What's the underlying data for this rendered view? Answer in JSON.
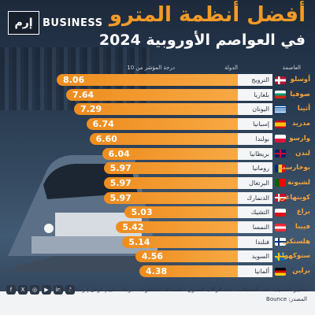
{
  "header": {
    "brand_logo": "إرم",
    "brand_text": "BUSINESS",
    "title_line1": "أفضل أنظمة المترو",
    "title_line2": "في العواصم الأوروبية 2024"
  },
  "columns": {
    "capital": "العاصمة",
    "country": "الدولة",
    "score": "درجة المؤشر من 10"
  },
  "colors": {
    "accent": "#f39a27",
    "bar": "#f7a944"
  },
  "chart_data": {
    "type": "bar",
    "orientation": "horizontal",
    "xlim": [
      0,
      10
    ],
    "rows": [
      {
        "capital": "أوسلو",
        "country": "النرويج",
        "value": 8.06,
        "label": "8.06",
        "flag": "norway"
      },
      {
        "capital": "صوفيا",
        "country": "بلغاريا",
        "value": 7.64,
        "label": "7.64",
        "flag": "bulgaria"
      },
      {
        "capital": "أثينا",
        "country": "اليونان",
        "value": 7.29,
        "label": "7.29",
        "flag": "greece"
      },
      {
        "capital": "مدريد",
        "country": "إسبانيا",
        "value": 6.74,
        "label": "6.74",
        "flag": "spain"
      },
      {
        "capital": "وارسو",
        "country": "بولندا",
        "value": 6.6,
        "label": "6.60",
        "flag": "poland"
      },
      {
        "capital": "لندن",
        "country": "بريطانيا",
        "value": 6.04,
        "label": "6.04",
        "flag": "uk"
      },
      {
        "capital": "بوخارست",
        "country": "رومانيا",
        "value": 5.97,
        "label": "5.97",
        "flag": "romania"
      },
      {
        "capital": "لشبونة",
        "country": "البرتغال",
        "value": 5.97,
        "label": "5.97",
        "flag": "portugal"
      },
      {
        "capital": "كوبنهاغن",
        "country": "الدنمارك",
        "value": 5.97,
        "label": "5.97",
        "flag": "denmark"
      },
      {
        "capital": "براغ",
        "country": "التشيك",
        "value": 5.03,
        "label": "5.03",
        "flag": "czech"
      },
      {
        "capital": "فيينا",
        "country": "النمسا",
        "value": 5.42,
        "label": "5.42",
        "flag": "austria"
      },
      {
        "capital": "هلسنكي",
        "country": "فنلندا",
        "value": 5.14,
        "label": "5.14",
        "flag": "finland"
      },
      {
        "capital": "ستوكهولم",
        "country": "السويد",
        "value": 4.56,
        "label": "4.56",
        "flag": "sweden"
      },
      {
        "capital": "برلين",
        "country": "ألمانيا",
        "value": 4.38,
        "label": "4.38",
        "flag": "germany"
      }
    ]
  },
  "footer": {
    "criteria": "معايير التصنيف: عدد المحطات - عدد الركاب السنوي - المسافة المقطوعة - درجات تقييم غوغل | رضا العملاء",
    "source": "المصدر: Bounce"
  },
  "social_icons": [
    "facebook-icon",
    "x-icon",
    "instagram-icon",
    "youtube-icon",
    "linkedin-icon",
    "tiktok-icon"
  ]
}
